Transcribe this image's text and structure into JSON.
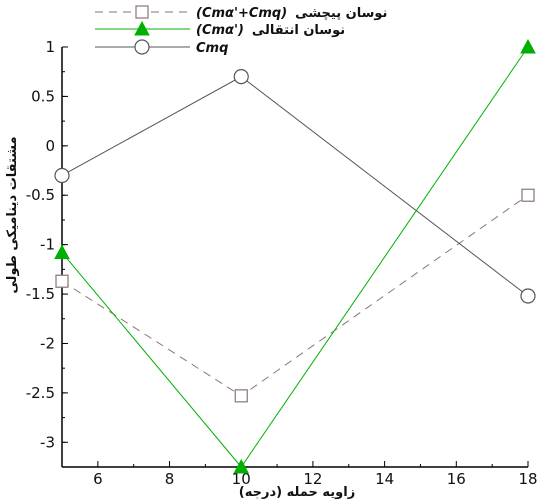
{
  "chart_data": {
    "type": "line",
    "xlabel": "زاویه حمله (درجه)",
    "ylabel": "مشتقات دینامیکی طولی",
    "xlim": [
      5,
      18
    ],
    "ylim": [
      -3.25,
      1
    ],
    "x_ticks": [
      "6",
      "8",
      "10",
      "12",
      "14",
      "16",
      "18"
    ],
    "y_ticks": [
      "1",
      "0.5",
      "0",
      "-0.5",
      "-1",
      "-1.5",
      "-2",
      "-2.5",
      "-3"
    ],
    "legend_position": "top",
    "grid": false,
    "series": [
      {
        "name": "(Cmα'+Cmq)",
        "legend_text": "نوسان پیچشی",
        "color": "#8b7575",
        "line_style": "dashed",
        "marker": "square",
        "x": [
          5,
          10,
          18
        ],
        "y": [
          -1.37,
          -2.53,
          -0.5
        ]
      },
      {
        "name": "(Cmα')",
        "legend_text": "نوسان انتقالی",
        "color": "#00b000",
        "line_style": "solid",
        "marker": "triangle",
        "x": [
          5,
          10,
          18
        ],
        "y": [
          -1.08,
          -3.25,
          1.0
        ]
      },
      {
        "name": "Cmq",
        "legend_text": "",
        "color": "#555555",
        "line_style": "solid",
        "marker": "circle",
        "x": [
          5,
          10,
          18
        ],
        "y": [
          -0.3,
          0.7,
          -1.52
        ]
      }
    ]
  }
}
